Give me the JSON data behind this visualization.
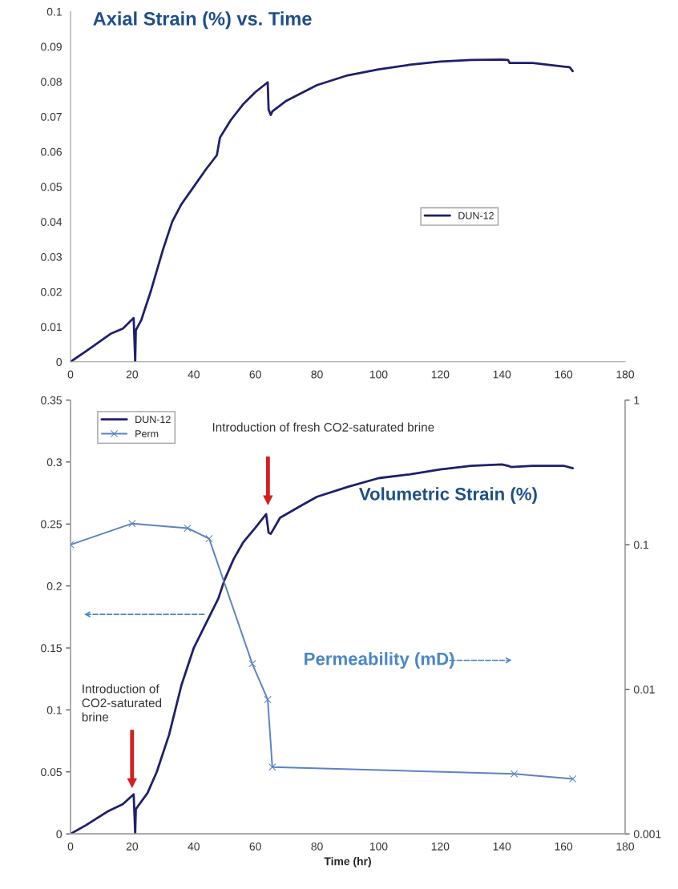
{
  "chart_data": [
    {
      "type": "line",
      "title": "Axial Strain (%) vs. Time",
      "xlim": [
        0,
        180
      ],
      "xticks": [
        0,
        20,
        40,
        60,
        80,
        100,
        120,
        140,
        160,
        180
      ],
      "ylim": [
        0,
        0.1
      ],
      "yticks": [
        0,
        0.01,
        0.02,
        0.03,
        0.04,
        0.05,
        0.06,
        0.07,
        0.08,
        0.09,
        0.1
      ],
      "legend": "center right",
      "series": [
        {
          "name": "DUN-12",
          "color": "#1f1f6e",
          "marker": "none",
          "x": [
            0,
            5,
            13,
            17,
            20.5,
            21,
            21.2,
            23,
            26,
            30,
            33,
            36,
            40,
            44,
            47.5,
            48.5,
            52,
            56,
            60,
            64,
            64.3,
            65,
            65.5,
            70,
            80,
            90,
            100,
            110,
            120,
            130,
            140,
            142,
            142.5,
            150,
            160,
            162,
            163
          ],
          "values": [
            0,
            0.003,
            0.008,
            0.0095,
            0.0125,
            0.0,
            0.009,
            0.012,
            0.02,
            0.032,
            0.04,
            0.045,
            0.05,
            0.055,
            0.059,
            0.064,
            0.069,
            0.0735,
            0.077,
            0.0798,
            0.072,
            0.0705,
            0.0715,
            0.0745,
            0.079,
            0.0818,
            0.0835,
            0.0848,
            0.0857,
            0.0862,
            0.0863,
            0.0862,
            0.0853,
            0.0853,
            0.0843,
            0.0841,
            0.083
          ]
        }
      ]
    },
    {
      "type": "line",
      "xlabel": "Time (hr)",
      "xlim": [
        0,
        180
      ],
      "xticks": [
        0,
        20,
        40,
        60,
        80,
        100,
        120,
        140,
        160,
        180
      ],
      "ylim": [
        0,
        0.35
      ],
      "yticks": [
        0,
        0.05,
        0.1,
        0.15,
        0.2,
        0.25,
        0.3,
        0.35
      ],
      "y2lim": [
        0.001,
        1
      ],
      "y2ticks": [
        0.001,
        0.01,
        0.1,
        1
      ],
      "log": "y2",
      "legend": "top left",
      "annotations": [
        "Introduction of fresh CO2-saturated brine",
        "Introduction of\nCO2-saturated\nbrine",
        "Volumetric Strain (%)",
        "Permeability (mD)"
      ],
      "series": [
        {
          "name": "DUN-12",
          "color": "#1f1f6e",
          "marker": "none",
          "x": [
            0,
            5,
            12,
            17,
            20.5,
            21,
            21.2,
            25,
            28,
            32,
            36,
            40,
            45,
            48,
            50,
            53,
            56,
            60,
            63.5,
            64.3,
            65,
            68,
            75,
            80,
            90,
            100,
            110,
            120,
            130,
            140,
            142,
            143,
            150,
            160,
            163
          ],
          "values": [
            0,
            0.007,
            0.018,
            0.024,
            0.032,
            0.0,
            0.02,
            0.033,
            0.05,
            0.08,
            0.12,
            0.15,
            0.175,
            0.19,
            0.205,
            0.222,
            0.235,
            0.247,
            0.258,
            0.243,
            0.242,
            0.255,
            0.265,
            0.272,
            0.28,
            0.287,
            0.29,
            0.294,
            0.297,
            0.298,
            0.297,
            0.296,
            0.297,
            0.297,
            0.295
          ]
        },
        {
          "name": "Perm",
          "color": "#5b84c4",
          "marker": "cross",
          "axis": "y2",
          "x": [
            0,
            20,
            38,
            45,
            59,
            64,
            65.5,
            144,
            163
          ],
          "values": [
            0.1,
            0.14,
            0.13,
            0.11,
            0.015,
            0.0085,
            0.0029,
            0.0026,
            0.0024
          ]
        }
      ]
    }
  ]
}
